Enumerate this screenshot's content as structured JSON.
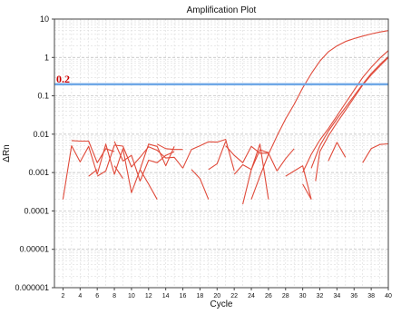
{
  "chart_data": {
    "type": "line",
    "title": "Amplification Plot",
    "xlabel": "Cycle",
    "ylabel": "ΔRn",
    "xlim": [
      1,
      40
    ],
    "ylim": [
      1e-06,
      10
    ],
    "yscale": "log",
    "xticks": [
      2,
      4,
      6,
      8,
      10,
      12,
      14,
      16,
      18,
      20,
      22,
      24,
      26,
      28,
      30,
      32,
      34,
      36,
      38,
      40
    ],
    "yticks": [
      {
        "value": 10,
        "label": "10"
      },
      {
        "value": 1,
        "label": "1"
      },
      {
        "value": 0.1,
        "label": "0.1"
      },
      {
        "value": 0.01,
        "label": "0.01"
      },
      {
        "value": 0.001,
        "label": "0.001"
      },
      {
        "value": 0.0001,
        "label": "0.0001"
      },
      {
        "value": 1e-05,
        "label": "0.00001"
      },
      {
        "value": 1e-06,
        "label": "0.000001"
      }
    ],
    "grid": true,
    "threshold": {
      "value": 0.2,
      "label": "0.2",
      "color": "#6fa8e6",
      "label_color": "#cc0000"
    },
    "series_color": "#e04a3a",
    "series": [
      {
        "segments": [
          [
            [
              24,
              0.0002
            ],
            [
              25,
              0.0008
            ],
            [
              26,
              0.003
            ],
            [
              27,
              0.009
            ],
            [
              28,
              0.025
            ],
            [
              29,
              0.06
            ],
            [
              30,
              0.16
            ],
            [
              31,
              0.38
            ],
            [
              32,
              0.8
            ],
            [
              33,
              1.4
            ],
            [
              34,
              2.0
            ],
            [
              35,
              2.6
            ],
            [
              36,
              3.1
            ],
            [
              37,
              3.6
            ],
            [
              38,
              4.1
            ],
            [
              39,
              4.6
            ],
            [
              40,
              5.0
            ]
          ]
        ]
      },
      {
        "segments": [
          [
            [
              30,
              0.001
            ],
            [
              31,
              0.003
            ],
            [
              32,
              0.007
            ],
            [
              33,
              0.014
            ],
            [
              34,
              0.03
            ],
            [
              35,
              0.065
            ],
            [
              36,
              0.14
            ],
            [
              37,
              0.3
            ],
            [
              38,
              0.55
            ],
            [
              39,
              0.95
            ],
            [
              40,
              1.5
            ]
          ]
        ]
      },
      {
        "segments": [
          [
            [
              31,
              0.0013
            ],
            [
              32,
              0.005
            ],
            [
              33,
              0.012
            ],
            [
              34,
              0.025
            ],
            [
              35,
              0.05
            ],
            [
              36,
              0.1
            ],
            [
              37,
              0.2
            ],
            [
              38,
              0.38
            ],
            [
              39,
              0.65
            ],
            [
              40,
              1.05
            ]
          ]
        ]
      },
      {
        "segments": [
          [
            [
              31.5,
              0.0006
            ],
            [
              32,
              0.0035
            ],
            [
              33,
              0.009
            ],
            [
              34,
              0.02
            ],
            [
              35,
              0.042
            ],
            [
              36,
              0.09
            ],
            [
              37,
              0.19
            ],
            [
              38,
              0.35
            ],
            [
              39,
              0.6
            ],
            [
              40,
              1.0
            ]
          ]
        ]
      },
      {
        "segments": [
          [
            [
              2,
              0.0002
            ],
            [
              3,
              0.005
            ],
            [
              4,
              0.0019
            ],
            [
              5,
              0.0048
            ],
            [
              6,
              0.0009
            ],
            [
              7,
              0.0055
            ],
            [
              8,
              0.0009
            ],
            [
              9,
              0.0042
            ],
            [
              10,
              0.0003
            ],
            [
              11,
              0.0012
            ],
            [
              12,
              0.0055
            ],
            [
              13,
              0.0048
            ],
            [
              14,
              0.0015
            ],
            [
              15,
              0.0048
            ]
          ],
          [
            [
              6,
              0.0008
            ],
            [
              7,
              0.0011
            ],
            [
              8,
              0.0052
            ],
            [
              9,
              0.0049
            ],
            [
              10,
              0.0014
            ],
            [
              11,
              0.0025
            ],
            [
              12,
              0.0047
            ],
            [
              13,
              0.0038
            ],
            [
              14,
              0.0024
            ],
            [
              15,
              0.0025
            ],
            [
              16,
              0.0013
            ]
          ],
          [
            [
              8,
              0.0065
            ],
            [
              9,
              0.002
            ],
            [
              10,
              0.0028
            ],
            [
              11,
              0.0006
            ],
            [
              12,
              0.0021
            ],
            [
              13,
              0.0018
            ],
            [
              14,
              0.0028
            ],
            [
              15,
              0.0035
            ]
          ],
          [
            [
              16,
              0.0013
            ],
            [
              17,
              0.004
            ],
            [
              18,
              0.005
            ],
            [
              19,
              0.0063
            ],
            [
              20,
              0.0062
            ],
            [
              21,
              0.0073
            ],
            [
              22,
              0.0011
            ]
          ],
          [
            [
              21,
              0.005
            ],
            [
              22,
              0.0028
            ],
            [
              23,
              0.0018
            ],
            [
              24,
              0.0048
            ],
            [
              25,
              0.0032
            ],
            [
              26,
              0.0032
            ],
            [
              27,
              0.0011
            ]
          ],
          [
            [
              22,
              0.0009
            ],
            [
              23,
              0.0016
            ],
            [
              24,
              0.0012
            ],
            [
              25,
              0.0055
            ],
            [
              26,
              0.0002
            ]
          ],
          [
            [
              28,
              0.0008
            ],
            [
              29,
              0.0011
            ],
            [
              30,
              0.0015
            ],
            [
              31,
              0.0002
            ]
          ],
          [
            [
              37,
              0.0018
            ],
            [
              38,
              0.0042
            ],
            [
              39,
              0.0054
            ],
            [
              40,
              0.0056
            ]
          ]
        ]
      },
      {
        "segments": [
          [
            [
              3,
              0.0068
            ],
            [
              4,
              0.0066
            ],
            [
              5,
              0.0066
            ],
            [
              6,
              0.0018
            ],
            [
              7,
              0.0042
            ],
            [
              8,
              0.0035
            ]
          ],
          [
            [
              13,
              0.0055
            ],
            [
              14,
              0.0042
            ],
            [
              15,
              0.004
            ],
            [
              16,
              0.004
            ]
          ],
          [
            [
              19,
              0.0012
            ],
            [
              20,
              0.0017
            ],
            [
              21,
              0.0065
            ]
          ],
          [
            [
              23,
              0.00015
            ],
            [
              24,
              0.0012
            ],
            [
              25,
              0.0039
            ],
            [
              26,
              0.0033
            ]
          ],
          [
            [
              27,
              0.0011
            ],
            [
              28,
              0.0023
            ],
            [
              29,
              0.0042
            ]
          ],
          [
            [
              33,
              0.002
            ],
            [
              34,
              0.0061
            ],
            [
              35,
              0.0025
            ]
          ],
          [
            [
              8,
              0.0015
            ],
            [
              9,
              0.0007
            ]
          ],
          [
            [
              17,
              0.0012
            ],
            [
              18,
              0.0007
            ],
            [
              19,
              0.0002
            ]
          ],
          [
            [
              11,
              0.0012
            ],
            [
              12,
              0.0005
            ],
            [
              13,
              0.0002
            ]
          ],
          [
            [
              5,
              0.0008
            ],
            [
              6,
              0.0012
            ]
          ],
          [
            [
              30,
              0.0005
            ],
            [
              31,
              0.0002
            ]
          ]
        ]
      }
    ]
  }
}
